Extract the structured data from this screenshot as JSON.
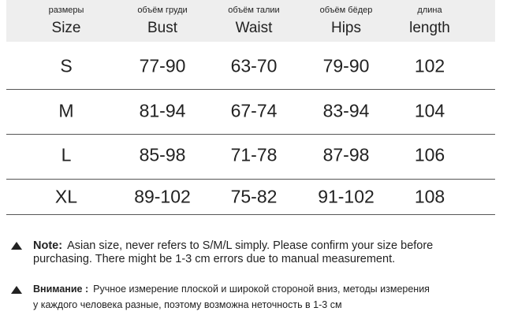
{
  "table": {
    "header": [
      {
        "ru": "размеры",
        "en": "Size"
      },
      {
        "ru": "объём груди",
        "en": "Bust"
      },
      {
        "ru": "объём талии",
        "en": "Waist"
      },
      {
        "ru": "объём бёдер",
        "en": "Hips"
      },
      {
        "ru": "длина",
        "en": "length"
      }
    ],
    "rows": [
      [
        "S",
        "77-90",
        "63-70",
        "79-90",
        "102"
      ],
      [
        "M",
        "81-94",
        "67-74",
        "83-94",
        "104"
      ],
      [
        "L",
        "85-98",
        "71-78",
        "87-98",
        "106"
      ],
      [
        "XL",
        "89-102",
        "75-82",
        "91-102",
        "108"
      ]
    ]
  },
  "notes": [
    {
      "label": "Note:",
      "lines": [
        "Asian size, never refers to S/M/L simply. Please confirm your size before",
        "purchasing. There might be 1-3 cm errors due to manual measurement."
      ]
    },
    {
      "label": "Внимание :",
      "lines": [
        "Ручное измерение плоской и широкой стороной вниз, методы измерения",
        "у каждого человека разные, поэтому возможна неточность в 1-3 см"
      ]
    }
  ]
}
